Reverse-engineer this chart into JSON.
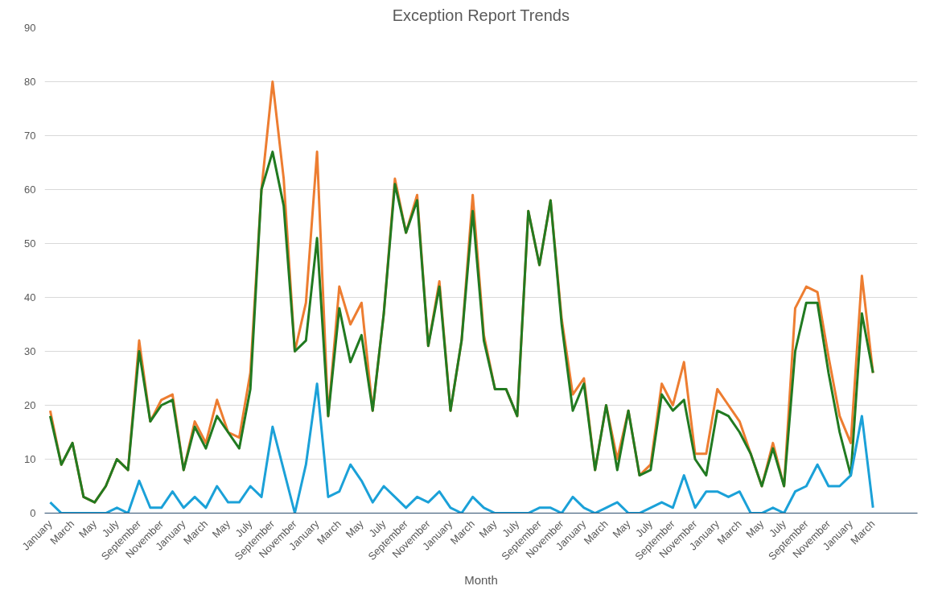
{
  "chart_data": {
    "type": "line",
    "title": "Exception Report Trends",
    "xlabel": "Month",
    "categories": [
      "January",
      null,
      "March",
      null,
      "May",
      null,
      "July",
      null,
      "September",
      null,
      "November",
      null,
      "January",
      null,
      "March",
      null,
      "May",
      null,
      "July",
      null,
      "September",
      null,
      "November",
      null,
      "January",
      null,
      "March",
      null,
      "May",
      null,
      "July",
      null,
      "September",
      null,
      "November",
      null,
      "January",
      null,
      "March",
      null,
      "May",
      null,
      "July",
      null,
      "September",
      null,
      "November",
      null,
      "January",
      null,
      "March",
      null,
      "May",
      null,
      "July",
      null,
      "September",
      null,
      "November",
      null,
      "January",
      null,
      "March",
      null,
      "May",
      null,
      "July",
      null,
      "September",
      null,
      "November",
      null,
      "January",
      null,
      "March"
    ],
    "series": [
      {
        "color": "#ed7d31",
        "values": [
          19,
          9,
          13,
          3,
          2,
          5,
          10,
          8,
          32,
          17,
          21,
          22,
          8,
          17,
          13,
          21,
          15,
          14,
          26,
          60,
          80,
          62,
          30,
          39,
          67,
          18,
          42,
          35,
          39,
          19,
          37,
          62,
          52,
          59,
          31,
          43,
          19,
          32,
          59,
          33,
          23,
          23,
          18,
          56,
          46,
          58,
          36,
          22,
          25,
          8,
          20,
          10,
          19,
          7,
          9,
          24,
          20,
          28,
          11,
          11,
          23,
          20,
          17,
          11,
          5,
          13,
          5,
          38,
          42,
          41,
          29,
          18,
          13,
          44,
          26
        ]
      },
      {
        "color": "#217a21",
        "values": [
          18,
          9,
          13,
          3,
          2,
          5,
          10,
          8,
          30,
          17,
          20,
          21,
          8,
          16,
          12,
          18,
          15,
          12,
          23,
          60,
          67,
          57,
          30,
          32,
          51,
          18,
          38,
          28,
          33,
          19,
          37,
          61,
          52,
          58,
          31,
          42,
          19,
          32,
          56,
          32,
          23,
          23,
          18,
          56,
          46,
          58,
          35,
          19,
          24,
          8,
          20,
          8,
          19,
          7,
          8,
          22,
          19,
          21,
          10,
          7,
          19,
          18,
          15,
          11,
          5,
          12,
          5,
          30,
          39,
          39,
          26,
          15,
          7,
          37,
          26
        ]
      },
      {
        "color": "#1ba1d8",
        "values": [
          2,
          0,
          0,
          0,
          0,
          0,
          1,
          0,
          6,
          1,
          1,
          4,
          1,
          3,
          1,
          5,
          2,
          2,
          5,
          3,
          16,
          8,
          0,
          9,
          24,
          3,
          4,
          9,
          6,
          2,
          5,
          3,
          1,
          3,
          2,
          4,
          1,
          0,
          3,
          1,
          0,
          0,
          0,
          0,
          1,
          1,
          0,
          3,
          1,
          0,
          1,
          2,
          0,
          0,
          1,
          2,
          1,
          7,
          1,
          4,
          4,
          3,
          4,
          0,
          0,
          1,
          0,
          4,
          5,
          9,
          5,
          5,
          7,
          18,
          1
        ]
      }
    ],
    "ylim": [
      0,
      90
    ],
    "yticks": [
      0,
      10,
      20,
      30,
      40,
      50,
      60,
      70,
      80,
      90
    ],
    "grid": "y",
    "line_style": "solid",
    "marker": "none"
  }
}
